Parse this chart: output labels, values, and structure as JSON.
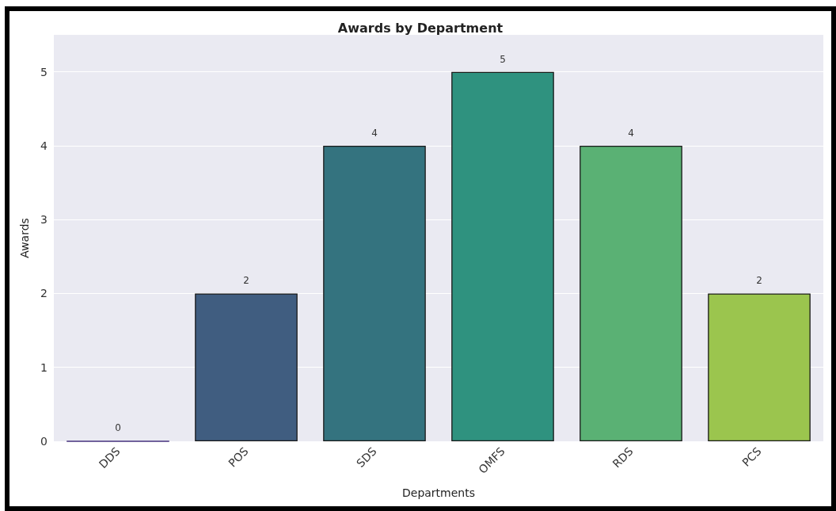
{
  "chart_data": {
    "type": "bar",
    "title": "Awards by Department",
    "xlabel": "Departments",
    "ylabel": "Awards",
    "categories": [
      "DDS",
      "POS",
      "SDS",
      "OMFS",
      "RDS",
      "PCS"
    ],
    "values": [
      0,
      2,
      4,
      5,
      4,
      2
    ],
    "colors": [
      "#46327e",
      "#405d80",
      "#34737f",
      "#2f927f",
      "#5ab174",
      "#9bc54e"
    ],
    "ylim": [
      0,
      5.5
    ],
    "yticks": [
      0,
      1,
      2,
      3,
      4,
      5
    ],
    "grid": "y",
    "data_labels": true
  }
}
